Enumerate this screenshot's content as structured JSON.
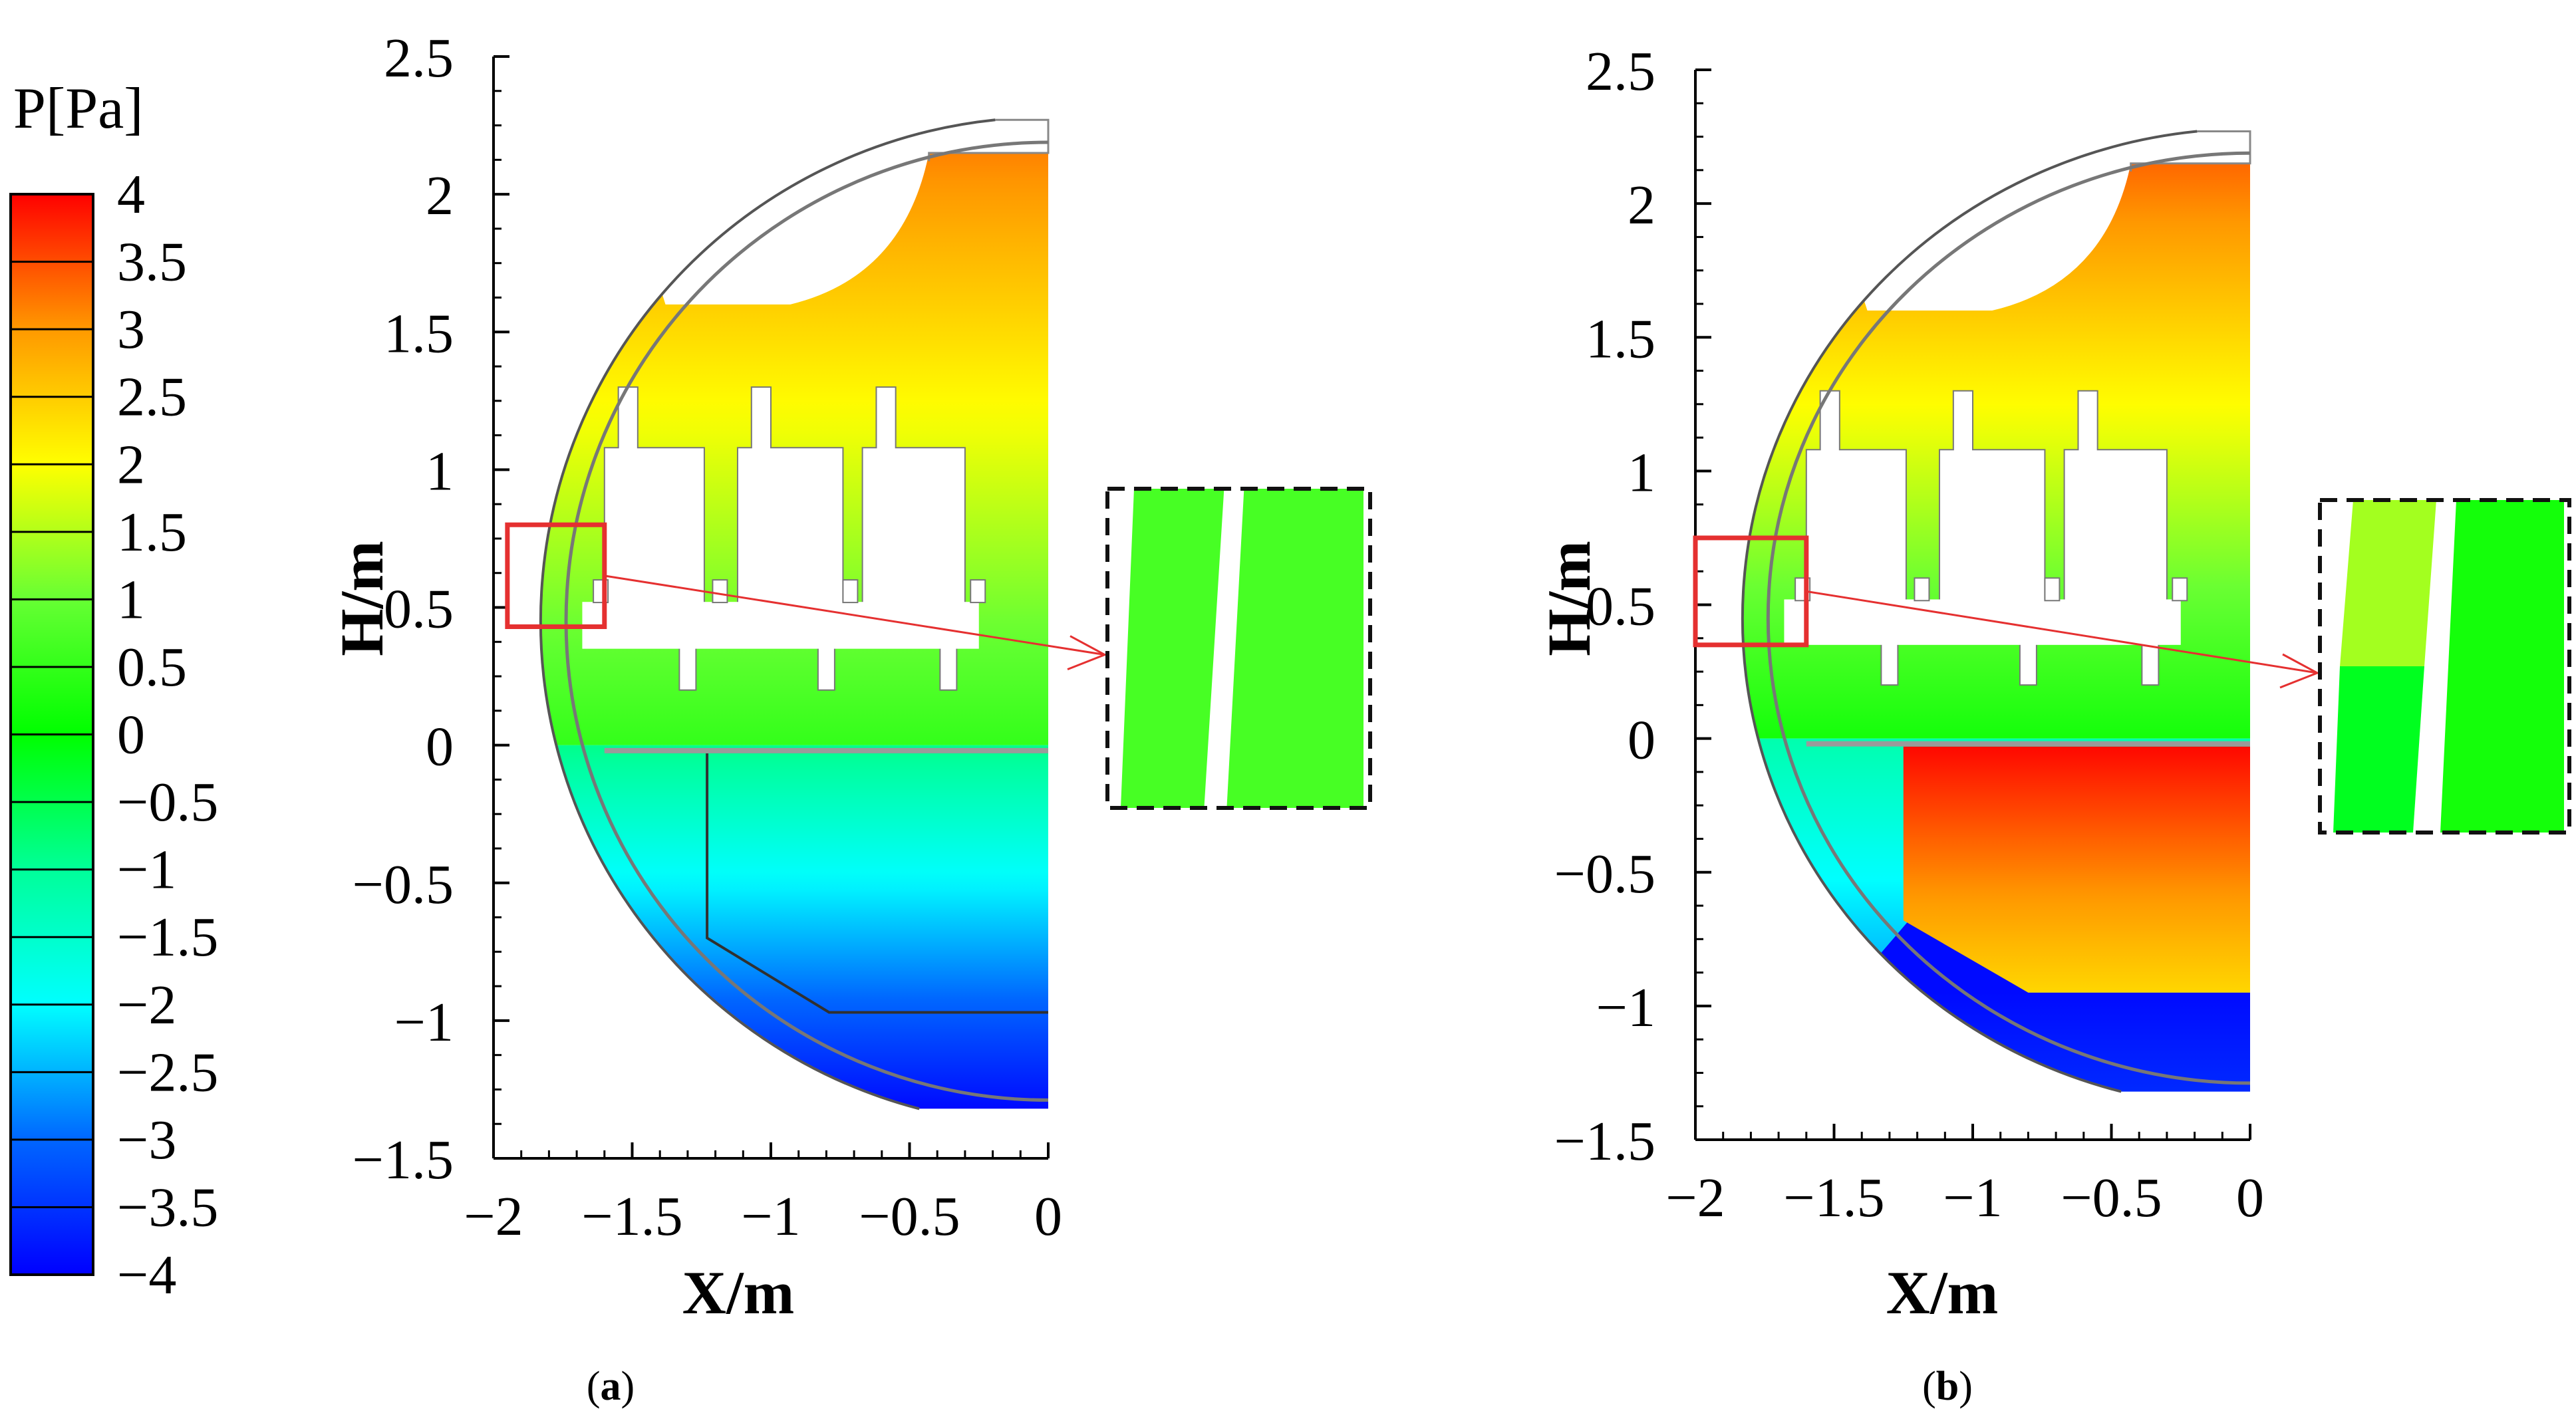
{
  "chart_data": [
    {
      "id": "panel-a",
      "type": "heatmap",
      "caption_letter": "a",
      "xlabel": "X/m",
      "ylabel": "H/m",
      "xlim": [
        -2,
        0
      ],
      "ylim": [
        -1.5,
        2.5
      ],
      "x_ticks": [
        {
          "value": -2,
          "label": "−2"
        },
        {
          "value": -1.5,
          "label": "−1.5"
        },
        {
          "value": -1,
          "label": "−1"
        },
        {
          "value": -0.5,
          "label": "−0.5"
        },
        {
          "value": 0,
          "label": "0"
        }
      ],
      "y_ticks": [
        {
          "value": -1.5,
          "label": "−1.5"
        },
        {
          "value": -1,
          "label": "−1"
        },
        {
          "value": -0.5,
          "label": "−0.5"
        },
        {
          "value": 0,
          "label": "0"
        },
        {
          "value": 0.5,
          "label": "0.5"
        },
        {
          "value": 1,
          "label": "1"
        },
        {
          "value": 1.5,
          "label": "1.5"
        },
        {
          "value": 2,
          "label": "2"
        },
        {
          "value": 2.5,
          "label": "2.5"
        }
      ],
      "domain_radius_m": 1.83,
      "domain_center_h_m": 0.45,
      "upper_field": {
        "h_from": 0,
        "h_to": 2.27,
        "p_from": 0.5,
        "p_to": 3.3
      },
      "lower_field": {
        "h_from": -1.32,
        "h_to": 0,
        "p_from": -3.9,
        "p_to": -0.9
      },
      "lower_region_outline": "cabin-partition",
      "zoom_box": {
        "x": [
          -1.95,
          -1.6
        ],
        "h": [
          0.43,
          0.8
        ]
      },
      "zoom_inset_values": {
        "left": 0.7,
        "right": 0.7
      }
    },
    {
      "id": "panel-b",
      "type": "heatmap",
      "caption_letter": "b",
      "xlabel": "X/m",
      "ylabel": "H/m",
      "xlim": [
        -2,
        0
      ],
      "ylim": [
        -1.5,
        2.5
      ],
      "x_ticks": [
        {
          "value": -2,
          "label": "−2"
        },
        {
          "value": -1.5,
          "label": "−1.5"
        },
        {
          "value": -1,
          "label": "−1"
        },
        {
          "value": -0.5,
          "label": "−0.5"
        },
        {
          "value": 0,
          "label": "0"
        }
      ],
      "y_ticks": [
        {
          "value": -1.5,
          "label": "−1.5"
        },
        {
          "value": -1,
          "label": "−1"
        },
        {
          "value": -0.5,
          "label": "−0.5"
        },
        {
          "value": 0,
          "label": "0"
        },
        {
          "value": 0.5,
          "label": "0.5"
        },
        {
          "value": 1,
          "label": "1"
        },
        {
          "value": 1.5,
          "label": "1.5"
        },
        {
          "value": 2,
          "label": "2"
        },
        {
          "value": 2.5,
          "label": "2.5"
        }
      ],
      "domain_radius_m": 1.83,
      "domain_center_h_m": 0.45,
      "upper_field": {
        "h_from": 0,
        "h_to": 2.27,
        "p_from": 0.2,
        "p_to": 3.5
      },
      "lower_left_field": {
        "h_from": -1.32,
        "h_to": 0,
        "p_from": -3.2,
        "p_to": -1.2
      },
      "cargo_field": {
        "h_from": -0.95,
        "h_to": 0,
        "p_from": 2.4,
        "p_to": 4
      },
      "bottom_field": {
        "h_from": -1.32,
        "h_to": -0.95,
        "p_from": -3.6,
        "p_to": -3.9
      },
      "zoom_box": {
        "x": [
          -2,
          -1.6
        ],
        "h": [
          0.35,
          0.75
        ]
      },
      "zoom_inset_values": {
        "left_top": 1.4,
        "left_bottom": -0.2,
        "right": 0.2
      }
    }
  ],
  "colorbar": {
    "title": "P[Pa]",
    "min": -4,
    "max": 4,
    "levels": [
      {
        "value": 4,
        "label": "4"
      },
      {
        "value": 3.5,
        "label": "3.5"
      },
      {
        "value": 3,
        "label": "3"
      },
      {
        "value": 2.5,
        "label": "2.5"
      },
      {
        "value": 2,
        "label": "2"
      },
      {
        "value": 1.5,
        "label": "1.5"
      },
      {
        "value": 1,
        "label": "1"
      },
      {
        "value": 0.5,
        "label": "0.5"
      },
      {
        "value": 0,
        "label": "0"
      },
      {
        "value": -0.5,
        "label": "−0.5"
      },
      {
        "value": -1,
        "label": "−1"
      },
      {
        "value": -1.5,
        "label": "−1.5"
      },
      {
        "value": -2,
        "label": "−2"
      },
      {
        "value": -2.5,
        "label": "−2.5"
      },
      {
        "value": -3,
        "label": "−3"
      },
      {
        "value": -3.5,
        "label": "−3.5"
      },
      {
        "value": -4,
        "label": "−4"
      }
    ],
    "stops": [
      {
        "value": -4,
        "color": "#0000ff"
      },
      {
        "value": -3,
        "color": "#0066ff"
      },
      {
        "value": -2,
        "color": "#00ffff"
      },
      {
        "value": -1,
        "color": "#00ff99"
      },
      {
        "value": 0,
        "color": "#00ff00"
      },
      {
        "value": 1,
        "color": "#66ff33"
      },
      {
        "value": 2,
        "color": "#ffff00"
      },
      {
        "value": 3,
        "color": "#ff9900"
      },
      {
        "value": 4,
        "color": "#ff0000"
      }
    ]
  },
  "captions": {
    "a": "a",
    "b": "b"
  }
}
